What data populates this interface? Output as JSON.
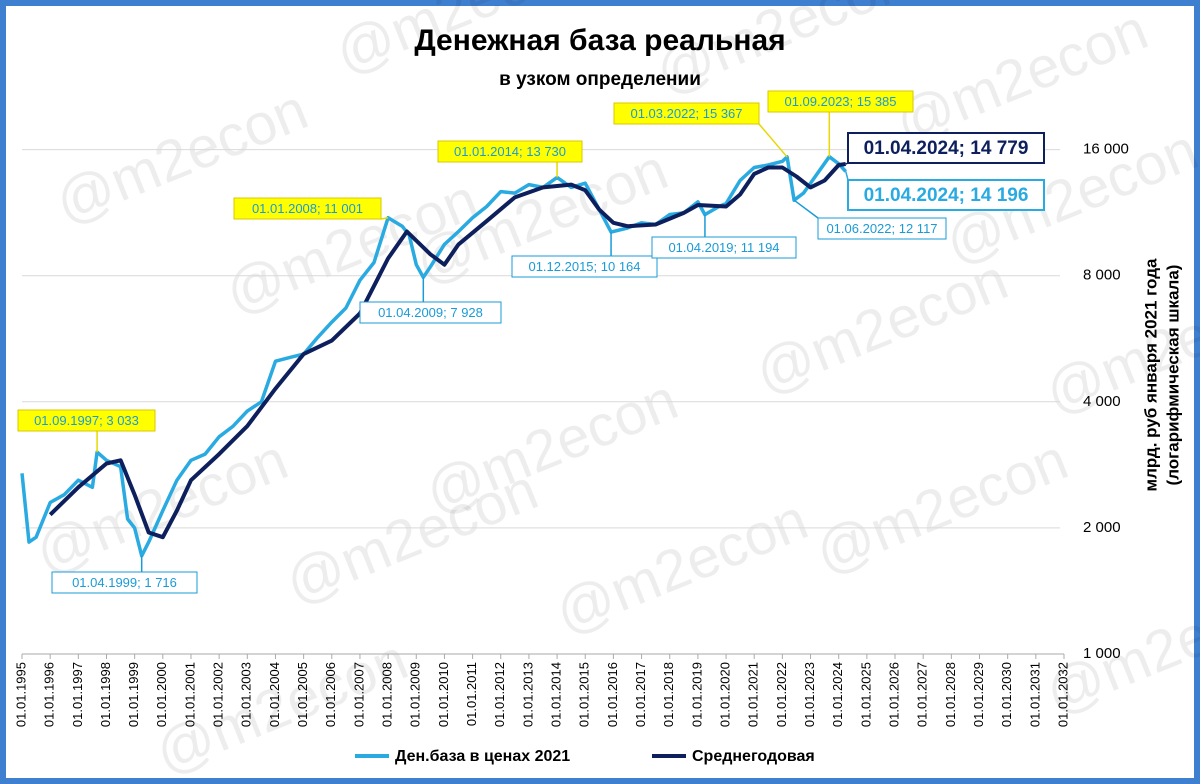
{
  "chart_data": {
    "type": "line",
    "title": "Денежная база реальная",
    "subtitle": "в узком определении",
    "y_label": [
      "млрд. руб января 2021 года",
      "(логарифмическая шкала)"
    ],
    "watermark": "@m2econ",
    "log_scale": true,
    "grid": true,
    "legend": "bottom",
    "ylim": [
      1000,
      20000
    ],
    "yticks": [
      {
        "value": 1000,
        "label": "1 000"
      },
      {
        "value": 2000,
        "label": "2 000"
      },
      {
        "value": 4000,
        "label": "4 000"
      },
      {
        "value": 8000,
        "label": "8 000"
      },
      {
        "value": 16000,
        "label": "16 000"
      }
    ],
    "xlim": [
      "01.01.1995",
      "01.01.2032"
    ],
    "xticks": [
      "01.01.1995",
      "01.01.1996",
      "01.01.1997",
      "01.01.1998",
      "01.01.1999",
      "01.01.2000",
      "01.01.2001",
      "01.01.2002",
      "01.01.2003",
      "01.01.2004",
      "01.01.2005",
      "01.01.2006",
      "01.01.2007",
      "01.01.2008",
      "01.01.2009",
      "01.01.2010",
      "01.01.2011",
      "01.01.2012",
      "01.01.2013",
      "01.01.2014",
      "01.01.2015",
      "01.01.2016",
      "01.01.2017",
      "01.01.2018",
      "01.01.2019",
      "01.01.2020",
      "01.01.2021",
      "01.01.2022",
      "01.01.2023",
      "01.01.2024",
      "01.01.2025",
      "01.01.2026",
      "01.01.2027",
      "01.01.2028",
      "01.01.2029",
      "01.01.2030",
      "01.01.2031",
      "01.01.2032"
    ],
    "series": [
      {
        "name": "Ден.база в ценах 2021",
        "color": "#29aae1",
        "x": [
          "01.01.1995",
          "01.04.1995",
          "01.07.1995",
          "01.01.1996",
          "01.07.1996",
          "01.01.1997",
          "01.07.1997",
          "01.09.1997",
          "01.01.1998",
          "01.07.1998",
          "01.10.1998",
          "01.01.1999",
          "01.04.1999",
          "01.07.1999",
          "01.01.2000",
          "01.07.2000",
          "01.01.2001",
          "01.07.2001",
          "01.01.2002",
          "01.07.2002",
          "01.01.2003",
          "01.07.2003",
          "01.01.2004",
          "01.07.2004",
          "01.01.2005",
          "01.07.2005",
          "01.01.2006",
          "01.07.2006",
          "01.01.2007",
          "01.07.2007",
          "01.01.2008",
          "01.07.2008",
          "01.10.2008",
          "01.01.2009",
          "01.04.2009",
          "01.07.2009",
          "01.01.2010",
          "01.07.2010",
          "01.01.2011",
          "01.07.2011",
          "01.01.2012",
          "01.07.2012",
          "01.01.2013",
          "01.07.2013",
          "01.01.2014",
          "01.07.2014",
          "01.01.2015",
          "01.07.2015",
          "01.12.2015",
          "01.07.2016",
          "01.01.2017",
          "01.07.2017",
          "01.01.2018",
          "01.07.2018",
          "01.01.2019",
          "01.04.2019",
          "01.10.2019",
          "01.01.2020",
          "01.07.2020",
          "01.01.2021",
          "01.07.2021",
          "01.01.2022",
          "01.03.2022",
          "01.06.2022",
          "01.10.2022",
          "01.01.2023",
          "01.09.2023",
          "01.01.2024",
          "01.04.2024"
        ],
        "values": [
          2700,
          1850,
          1900,
          2300,
          2400,
          2600,
          2500,
          3033,
          2900,
          2800,
          2100,
          2000,
          1716,
          1850,
          2200,
          2600,
          2900,
          3000,
          3300,
          3500,
          3800,
          4000,
          5000,
          5100,
          5200,
          5700,
          6200,
          6700,
          7800,
          8600,
          11001,
          10500,
          10000,
          8500,
          7928,
          8400,
          9500,
          10200,
          11000,
          11700,
          12700,
          12600,
          13200,
          13000,
          13730,
          13000,
          13300,
          11500,
          10164,
          10400,
          10700,
          10600,
          11200,
          11300,
          12000,
          11194,
          11700,
          11900,
          13500,
          14500,
          14700,
          15000,
          15367,
          12117,
          12600,
          13300,
          15385,
          14800,
          14196
        ]
      },
      {
        "name": "Среднегодовая",
        "color": "#0d1f5c",
        "x": [
          "01.01.1996",
          "01.01.1997",
          "01.01.1998",
          "01.07.1998",
          "01.01.1999",
          "01.07.1999",
          "01.01.2000",
          "01.07.2000",
          "01.01.2001",
          "01.01.2002",
          "01.01.2003",
          "01.01.2004",
          "01.01.2005",
          "01.01.2006",
          "01.01.2007",
          "01.01.2008",
          "01.09.2008",
          "01.07.2009",
          "01.01.2010",
          "01.07.2010",
          "01.07.2011",
          "01.07.2012",
          "01.07.2013",
          "01.07.2014",
          "01.01.2015",
          "01.07.2015",
          "01.01.2016",
          "01.07.2016",
          "01.07.2017",
          "01.07.2018",
          "01.01.2019",
          "01.01.2020",
          "01.07.2020",
          "01.01.2021",
          "01.07.2021",
          "01.01.2022",
          "01.07.2022",
          "01.01.2023",
          "01.07.2023",
          "01.01.2024",
          "01.04.2024"
        ],
        "values": [
          2150,
          2500,
          2850,
          2900,
          2400,
          1950,
          1900,
          2200,
          2600,
          3000,
          3500,
          4300,
          5200,
          5600,
          6500,
          8800,
          10200,
          9000,
          8500,
          9500,
          10800,
          12300,
          13000,
          13200,
          12800,
          11500,
          10700,
          10500,
          10600,
          11300,
          11800,
          11700,
          12500,
          14000,
          14500,
          14500,
          13800,
          13000,
          13500,
          14700,
          14779
        ]
      }
    ],
    "annotations": [
      {
        "text": "01.09.1997; 3 033",
        "color": "#1a9bd7",
        "fill": "#ffff00"
      },
      {
        "text": "01.04.1999; 1 716",
        "color": "#1a9bd7",
        "fill": "#ffffff"
      },
      {
        "text": "01.01.2008; 11 001",
        "color": "#1a9bd7",
        "fill": "#ffff00"
      },
      {
        "text": "01.04.2009; 7 928",
        "color": "#1a9bd7",
        "fill": "#ffffff"
      },
      {
        "text": "01.01.2014; 13 730",
        "color": "#1a9bd7",
        "fill": "#ffff00"
      },
      {
        "text": "01.12.2015; 10 164",
        "color": "#1a9bd7",
        "fill": "#ffffff"
      },
      {
        "text": "01.04.2019; 11 194",
        "color": "#1a9bd7",
        "fill": "#ffffff"
      },
      {
        "text": "01.03.2022; 15 367",
        "color": "#1a9bd7",
        "fill": "#ffff00"
      },
      {
        "text": "01.06.2022; 12 117",
        "color": "#1a9bd7",
        "fill": "#ffffff"
      },
      {
        "text": "01.09.2023; 15 385",
        "color": "#1a9bd7",
        "fill": "#ffff00"
      },
      {
        "text": "01.04.2024; 14 779",
        "color": "#0d1f5c",
        "fill": "#ffffff"
      },
      {
        "text": "01.04.2024; 14 196",
        "color": "#29aae1",
        "fill": "#ffffff"
      }
    ]
  }
}
